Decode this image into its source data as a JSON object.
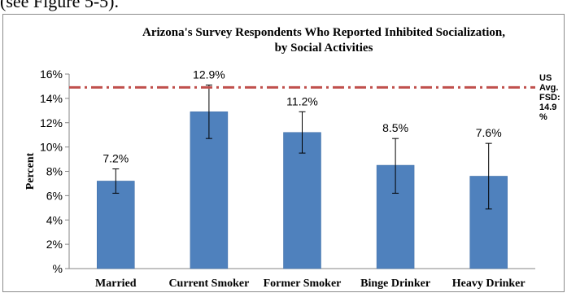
{
  "page_text": {
    "top_fragment": "(see Figure 5-5)."
  },
  "chart_data": {
    "type": "bar",
    "title": "Arizona's Survey Respondents Who Reported Inhibited Socialization,",
    "subtitle": "by Social Activities",
    "ylabel": "Percent",
    "xlabel": "",
    "ylim": [
      0,
      16
    ],
    "yticks": [
      "%",
      "2%",
      "4%",
      "6%",
      "8%",
      "10%",
      "12%",
      "14%",
      "16%"
    ],
    "categories": [
      "Married",
      "Current Smoker",
      "Former Smoker",
      "Binge Drinker",
      "Heavy Drinker"
    ],
    "values": [
      7.2,
      12.9,
      11.2,
      8.5,
      7.6
    ],
    "value_labels": [
      "7.2%",
      "12.9%",
      "11.2%",
      "8.5%",
      "7.6%"
    ],
    "error_low": [
      6.2,
      10.7,
      9.5,
      6.2,
      4.9
    ],
    "error_high": [
      8.2,
      15.1,
      12.9,
      10.7,
      10.3
    ],
    "reference_line": {
      "value": 14.9,
      "label_lines": [
        "US",
        "Avg.",
        "FSD:",
        "14.9",
        "%"
      ]
    },
    "bar_color": "#4f81bd",
    "reference_color": "#c0504d",
    "grid": false,
    "legend": "none"
  }
}
